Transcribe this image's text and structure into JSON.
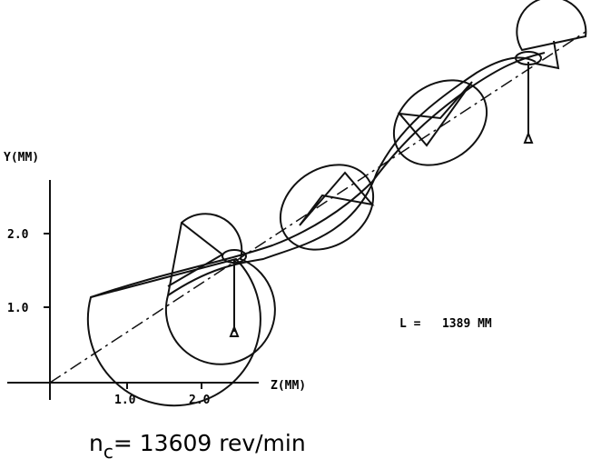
{
  "y_axis": {
    "label": "Y(MM)",
    "ticks": [
      "1.0",
      "2.0"
    ]
  },
  "z_axis": {
    "label": "Z(MM)",
    "ticks": [
      "1.0",
      "2.0"
    ]
  },
  "annotation": "L =   1389 MM",
  "caption": {
    "symbol": "n",
    "subscript": "c",
    "text": "= 13609 rev/min"
  }
}
